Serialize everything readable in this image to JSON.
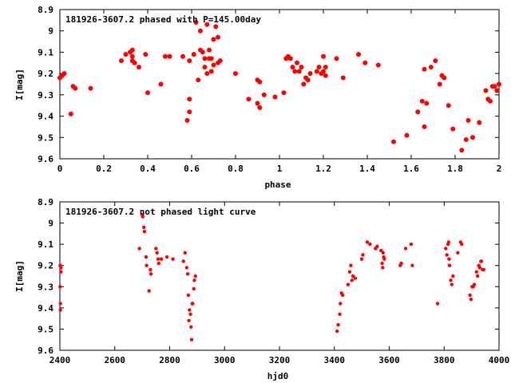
{
  "chart_data": [
    {
      "type": "scatter",
      "title": "181926-3607.2 phased with P=145.00day",
      "xlabel": "phase",
      "ylabel": "I[mag]",
      "xlim": [
        0,
        2
      ],
      "ylim": [
        9.6,
        8.9
      ],
      "y_inverted": true,
      "grid": false,
      "marker_color": "#ff0000",
      "marker": "filled-circle",
      "x_ticks": [
        "0",
        "0.2",
        "0.4",
        "0.6",
        "0.8",
        "1",
        "1.2",
        "1.4",
        "1.6",
        "1.8",
        "2"
      ],
      "x_tick_values": [
        0,
        0.2,
        0.4,
        0.6,
        0.8,
        1,
        1.2,
        1.4,
        1.6,
        1.8,
        2
      ],
      "y_ticks": [
        "8.9",
        "9",
        "9.1",
        "9.2",
        "9.3",
        "9.4",
        "9.5",
        "9.6"
      ],
      "y_tick_values": [
        8.9,
        9.0,
        9.1,
        9.2,
        9.3,
        9.4,
        9.5,
        9.6
      ],
      "series": [
        {
          "points": [
            [
              0.0,
              9.22
            ],
            [
              0.01,
              9.21
            ],
            [
              0.02,
              9.2
            ],
            [
              0.05,
              9.39
            ],
            [
              0.06,
              9.26
            ],
            [
              0.07,
              9.27
            ],
            [
              0.14,
              9.27
            ],
            [
              0.28,
              9.14
            ],
            [
              0.3,
              9.11
            ],
            [
              0.32,
              9.1
            ],
            [
              0.33,
              9.12
            ],
            [
              0.33,
              9.14
            ],
            [
              0.33,
              9.09
            ],
            [
              0.34,
              9.15
            ],
            [
              0.36,
              9.17
            ],
            [
              0.39,
              9.11
            ],
            [
              0.4,
              9.29
            ],
            [
              0.46,
              9.25
            ],
            [
              0.48,
              9.12
            ],
            [
              0.5,
              9.12
            ],
            [
              0.56,
              9.12
            ],
            [
              0.58,
              9.42
            ],
            [
              0.59,
              9.38
            ],
            [
              0.59,
              9.32
            ],
            [
              0.59,
              9.14
            ],
            [
              0.61,
              9.11
            ],
            [
              0.62,
              8.96
            ],
            [
              0.63,
              9.23
            ],
            [
              0.64,
              9.0
            ],
            [
              0.64,
              9.09
            ],
            [
              0.65,
              9.1
            ],
            [
              0.66,
              9.17
            ],
            [
              0.66,
              9.13
            ],
            [
              0.67,
              9.2
            ],
            [
              0.67,
              8.97
            ],
            [
              0.68,
              9.13
            ],
            [
              0.68,
              9.09
            ],
            [
              0.69,
              9.13
            ],
            [
              0.69,
              9.19
            ],
            [
              0.7,
              9.16
            ],
            [
              0.7,
              9.04
            ],
            [
              0.71,
              8.98
            ],
            [
              0.72,
              9.15
            ],
            [
              0.72,
              9.03
            ],
            [
              0.73,
              9.14
            ],
            [
              0.8,
              9.2
            ],
            [
              0.86,
              9.32
            ],
            [
              0.9,
              9.34
            ],
            [
              0.9,
              9.23
            ],
            [
              0.91,
              9.36
            ],
            [
              0.91,
              9.24
            ],
            [
              0.93,
              9.3
            ],
            [
              0.98,
              9.31
            ],
            [
              1.02,
              9.29
            ],
            [
              1.03,
              9.13
            ],
            [
              1.04,
              9.12
            ],
            [
              1.05,
              9.13
            ],
            [
              1.06,
              9.17
            ],
            [
              1.07,
              9.19
            ],
            [
              1.08,
              9.15
            ],
            [
              1.09,
              9.19
            ],
            [
              1.1,
              9.17
            ],
            [
              1.11,
              9.25
            ],
            [
              1.12,
              9.22
            ],
            [
              1.13,
              9.23
            ],
            [
              1.14,
              9.2
            ],
            [
              1.17,
              9.19
            ],
            [
              1.18,
              9.17
            ],
            [
              1.19,
              9.2
            ],
            [
              1.2,
              9.19
            ],
            [
              1.2,
              9.12
            ],
            [
              1.21,
              9.21
            ],
            [
              1.21,
              9.17
            ],
            [
              1.26,
              9.13
            ],
            [
              1.29,
              9.22
            ],
            [
              1.36,
              9.11
            ],
            [
              1.39,
              9.15
            ],
            [
              1.45,
              9.16
            ],
            [
              1.52,
              9.52
            ],
            [
              1.58,
              9.49
            ],
            [
              1.63,
              9.38
            ],
            [
              1.65,
              9.33
            ],
            [
              1.66,
              9.45
            ],
            [
              1.66,
              9.18
            ],
            [
              1.67,
              9.34
            ],
            [
              1.69,
              9.17
            ],
            [
              1.71,
              9.14
            ],
            [
              1.73,
              9.25
            ],
            [
              1.74,
              9.21
            ],
            [
              1.75,
              9.22
            ],
            [
              1.77,
              9.35
            ],
            [
              1.79,
              9.46
            ],
            [
              1.83,
              9.56
            ],
            [
              1.85,
              9.51
            ],
            [
              1.86,
              9.42
            ],
            [
              1.88,
              9.5
            ],
            [
              1.91,
              9.43
            ],
            [
              1.94,
              9.28
            ],
            [
              1.95,
              9.32
            ],
            [
              1.96,
              9.33
            ],
            [
              1.97,
              9.26
            ],
            [
              1.98,
              9.26
            ],
            [
              1.99,
              9.28
            ],
            [
              2.0,
              9.25
            ]
          ]
        }
      ]
    },
    {
      "type": "scatter",
      "title": "181926-3607.2 not phased light curve",
      "xlabel": "hjd0",
      "ylabel": "I[mag]",
      "xlim": [
        2400,
        4000
      ],
      "ylim": [
        9.6,
        8.9
      ],
      "y_inverted": true,
      "grid": false,
      "marker_color": "#ff0000",
      "marker": "filled-circle",
      "x_ticks": [
        "2400",
        "2600",
        "2800",
        "3000",
        "3200",
        "3400",
        "3600",
        "3800",
        "4000"
      ],
      "x_tick_values": [
        2400,
        2600,
        2800,
        3000,
        3200,
        3400,
        3600,
        3800,
        4000
      ],
      "y_ticks": [
        "8.9",
        "9",
        "9.1",
        "9.2",
        "9.3",
        "9.4",
        "9.5",
        "9.6"
      ],
      "y_tick_values": [
        8.9,
        9.0,
        9.1,
        9.2,
        9.3,
        9.4,
        9.5,
        9.6
      ],
      "series": [
        {
          "points": [
            [
              2401,
              9.2
            ],
            [
              2401,
              9.3
            ],
            [
              2402,
              9.38
            ],
            [
              2402,
              9.41
            ],
            [
              2404,
              9.21
            ],
            [
              2404,
              9.23
            ],
            [
              2690,
              9.12
            ],
            [
              2700,
              8.96
            ],
            [
              2702,
              8.97
            ],
            [
              2706,
              9.02
            ],
            [
              2708,
              9.04
            ],
            [
              2714,
              9.16
            ],
            [
              2716,
              9.2
            ],
            [
              2725,
              9.32
            ],
            [
              2730,
              9.22
            ],
            [
              2732,
              9.24
            ],
            [
              2750,
              9.12
            ],
            [
              2754,
              9.14
            ],
            [
              2758,
              9.17
            ],
            [
              2760,
              9.19
            ],
            [
              2770,
              9.17
            ],
            [
              2790,
              9.16
            ],
            [
              2812,
              9.17
            ],
            [
              2850,
              9.18
            ],
            [
              2856,
              9.14
            ],
            [
              2862,
              9.21
            ],
            [
              2866,
              9.24
            ],
            [
              2868,
              9.34
            ],
            [
              2870,
              9.46
            ],
            [
              2872,
              9.41
            ],
            [
              2876,
              9.43
            ],
            [
              2878,
              9.49
            ],
            [
              2880,
              9.55
            ],
            [
              2882,
              9.38
            ],
            [
              2884,
              9.38
            ],
            [
              2888,
              9.31
            ],
            [
              2890,
              9.27
            ],
            [
              2894,
              9.25
            ],
            [
              3410,
              9.51
            ],
            [
              3414,
              9.48
            ],
            [
              3420,
              9.43
            ],
            [
              3422,
              9.38
            ],
            [
              3426,
              9.33
            ],
            [
              3430,
              9.34
            ],
            [
              3450,
              9.29
            ],
            [
              3456,
              9.23
            ],
            [
              3460,
              9.2
            ],
            [
              3464,
              9.27
            ],
            [
              3468,
              9.25
            ],
            [
              3476,
              9.26
            ],
            [
              3500,
              9.17
            ],
            [
              3504,
              9.15
            ],
            [
              3520,
              9.09
            ],
            [
              3530,
              9.1
            ],
            [
              3550,
              9.12
            ],
            [
              3556,
              9.11
            ],
            [
              3570,
              9.13
            ],
            [
              3574,
              9.19
            ],
            [
              3576,
              9.21
            ],
            [
              3578,
              9.14
            ],
            [
              3580,
              9.16
            ],
            [
              3582,
              9.17
            ],
            [
              3640,
              9.2
            ],
            [
              3644,
              9.19
            ],
            [
              3660,
              9.12
            ],
            [
              3680,
              9.1
            ],
            [
              3684,
              9.2
            ],
            [
              3776,
              9.38
            ],
            [
              3806,
              9.12
            ],
            [
              3810,
              9.15
            ],
            [
              3814,
              9.1
            ],
            [
              3816,
              9.09
            ],
            [
              3818,
              9.17
            ],
            [
              3820,
              9.2
            ],
            [
              3824,
              9.27
            ],
            [
              3828,
              9.29
            ],
            [
              3832,
              9.25
            ],
            [
              3850,
              9.14
            ],
            [
              3860,
              9.09
            ],
            [
              3864,
              9.1
            ],
            [
              3894,
              9.34
            ],
            [
              3898,
              9.36
            ],
            [
              3902,
              9.3
            ],
            [
              3906,
              9.3
            ],
            [
              3910,
              9.29
            ],
            [
              3918,
              9.23
            ],
            [
              3922,
              9.25
            ],
            [
              3926,
              9.2
            ],
            [
              3930,
              9.21
            ],
            [
              3934,
              9.18
            ],
            [
              3936,
              9.18
            ],
            [
              3940,
              9.22
            ],
            [
              3944,
              9.22
            ]
          ]
        }
      ]
    }
  ]
}
